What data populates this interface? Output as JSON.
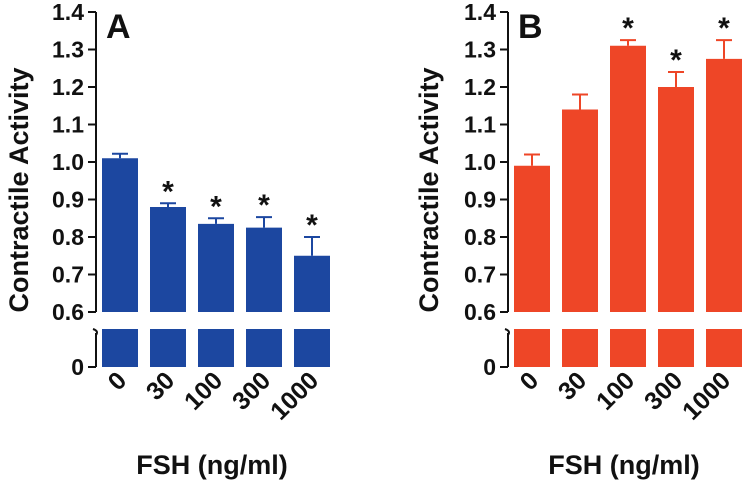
{
  "chart_data": [
    {
      "type": "bar",
      "panel_label": "A",
      "title": "",
      "xlabel": "FSH (ng/ml)",
      "ylabel": "Contractile Activity",
      "categories": [
        "0",
        "30",
        "100",
        "300",
        "1000"
      ],
      "values": [
        1.01,
        0.88,
        0.835,
        0.825,
        0.75
      ],
      "errors": [
        0.012,
        0.01,
        0.015,
        0.028,
        0.05
      ],
      "significance": [
        "",
        "*",
        "*",
        "*",
        "*"
      ],
      "yticks": [
        "0.6",
        "0.7",
        "0.8",
        "0.9",
        "1.0",
        "1.1",
        "1.2",
        "1.3",
        "1.4"
      ],
      "ytick_values": [
        0.6,
        0.7,
        0.8,
        0.9,
        1.0,
        1.1,
        1.2,
        1.3,
        1.4
      ],
      "ybreak_tick": "0",
      "ylim": [
        0.6,
        1.4
      ],
      "color": "#1c47a0",
      "grid": false,
      "legend": "none"
    },
    {
      "type": "bar",
      "panel_label": "B",
      "title": "",
      "xlabel": "FSH (ng/ml)",
      "ylabel": "Contractile Activity",
      "categories": [
        "0",
        "30",
        "100",
        "300",
        "1000"
      ],
      "values": [
        0.99,
        1.14,
        1.31,
        1.2,
        1.275
      ],
      "errors": [
        0.03,
        0.04,
        0.015,
        0.04,
        0.05
      ],
      "significance": [
        "",
        "",
        "*",
        "*",
        "*"
      ],
      "yticks": [
        "0.6",
        "0.7",
        "0.8",
        "0.9",
        "1.0",
        "1.1",
        "1.2",
        "1.3",
        "1.4"
      ],
      "ytick_values": [
        0.6,
        0.7,
        0.8,
        0.9,
        1.0,
        1.1,
        1.2,
        1.3,
        1.4
      ],
      "ybreak_tick": "0",
      "ylim": [
        0.6,
        1.4
      ],
      "color": "#ee4627",
      "grid": false,
      "legend": "none"
    }
  ]
}
